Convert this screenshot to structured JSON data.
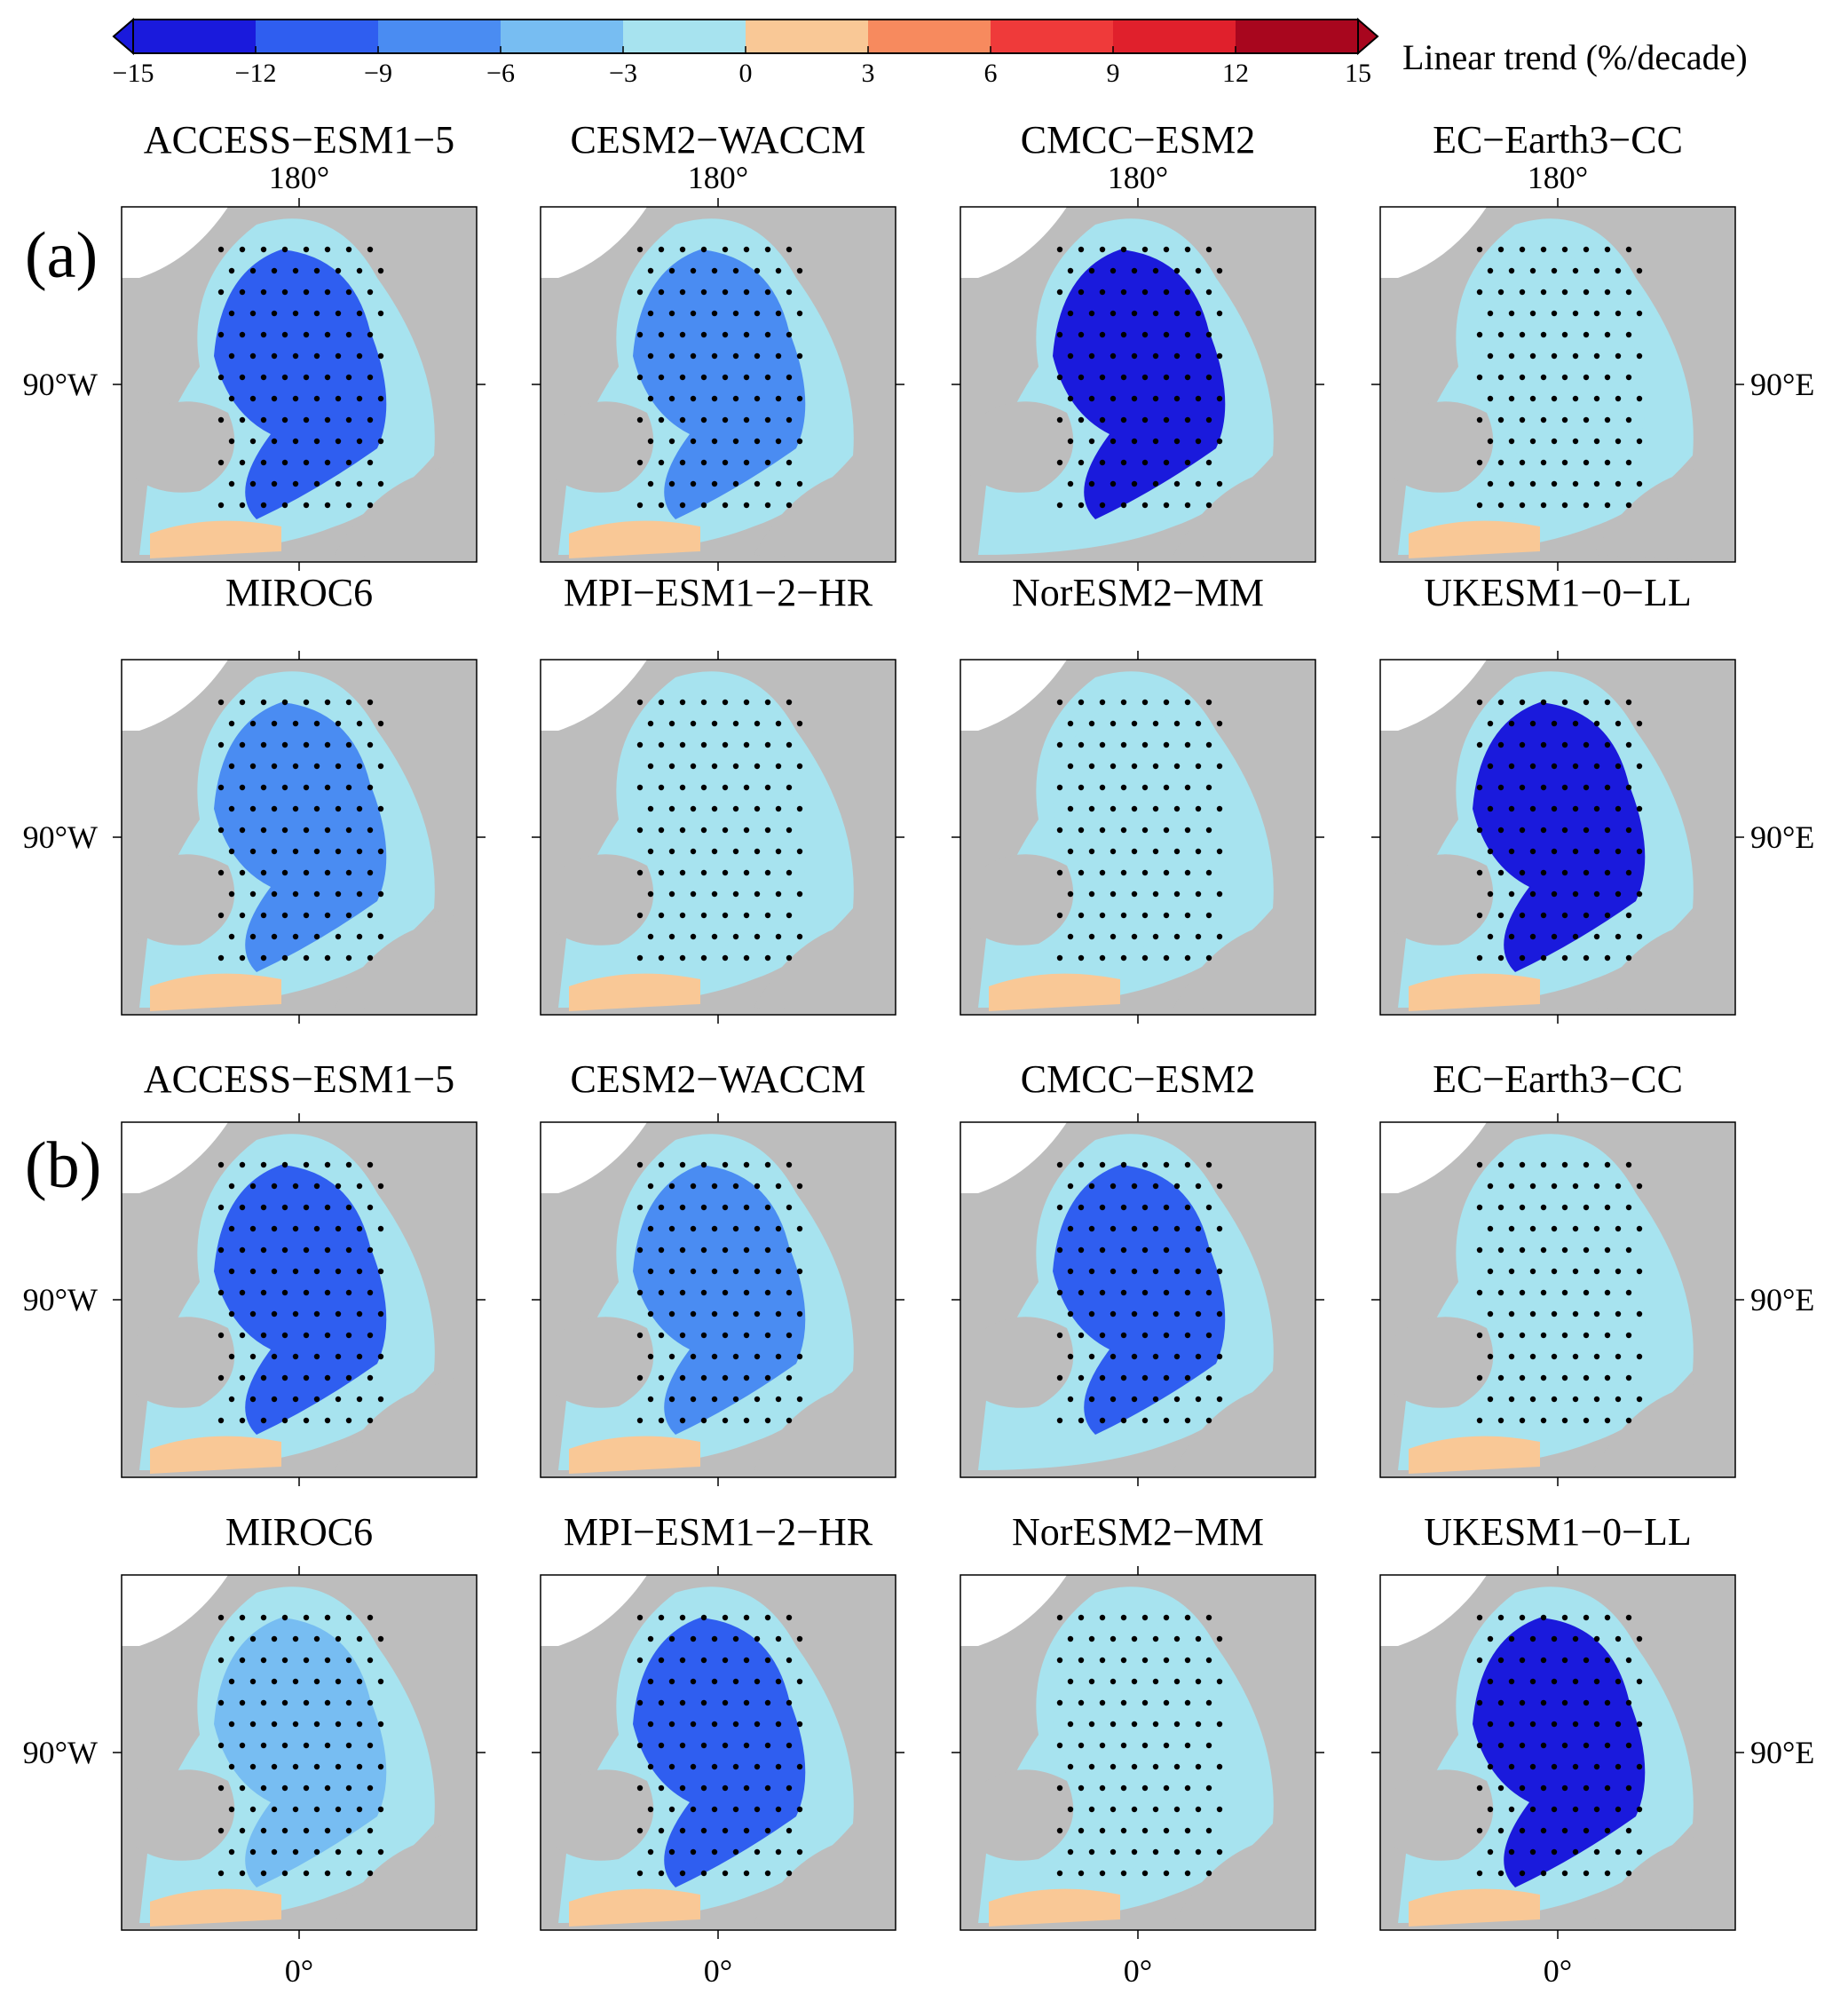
{
  "chart_data": {
    "type": "heatmap",
    "description_units": "Linear trend (%/decade)",
    "colorbar": {
      "label": "Linear trend (%/decade)",
      "ticks": [
        "−15",
        "−12",
        "−9",
        "−6",
        "−3",
        "0",
        "3",
        "6",
        "9",
        "12",
        "15"
      ],
      "bins": [
        {
          "from": -15,
          "to": -12,
          "color": "#1a1adc"
        },
        {
          "from": -12,
          "to": -9,
          "color": "#2f5ef0"
        },
        {
          "from": -9,
          "to": -6,
          "color": "#4a8cf2"
        },
        {
          "from": -6,
          "to": -3,
          "color": "#77bdf2"
        },
        {
          "from": -3,
          "to": 0,
          "color": "#a7e3ef"
        },
        {
          "from": 0,
          "to": 3,
          "color": "#f9c896"
        },
        {
          "from": 3,
          "to": 6,
          "color": "#f78a5e"
        },
        {
          "from": 6,
          "to": 9,
          "color": "#ef3a3a"
        },
        {
          "from": 9,
          "to": 12,
          "color": "#e0202c"
        },
        {
          "from": 12,
          "to": 15,
          "color": "#a8061e"
        }
      ]
    },
    "axis_labels": {
      "top": "180°",
      "left": "90°W",
      "right": "90°E",
      "bottom": "0°"
    },
    "panel_labels": [
      "(a)",
      "(b)"
    ],
    "models": [
      "ACCESS−ESM1−5",
      "CESM2−WACCM",
      "CMCC−ESM2",
      "EC−Earth3−CC",
      "MIROC6",
      "MPI−ESM1−2−HR",
      "NorESM2−MM",
      "UKESM1−0−LL"
    ],
    "panels": [
      {
        "group": "a",
        "model": "ACCESS−ESM1−5",
        "dominant_trend": "-12 to -9",
        "positive_region": true,
        "stippled": true
      },
      {
        "group": "a",
        "model": "CESM2−WACCM",
        "dominant_trend": "-9 to -6",
        "positive_region": true,
        "stippled": true
      },
      {
        "group": "a",
        "model": "CMCC−ESM2",
        "dominant_trend": "-15 to -12",
        "positive_region": false,
        "stippled": true
      },
      {
        "group": "a",
        "model": "EC−Earth3−CC",
        "dominant_trend": "-3 to 0",
        "positive_region": true,
        "stippled": true
      },
      {
        "group": "a",
        "model": "MIROC6",
        "dominant_trend": "-9 to -6",
        "positive_region": true,
        "stippled": true
      },
      {
        "group": "a",
        "model": "MPI−ESM1−2−HR",
        "dominant_trend": "-3 to 0",
        "positive_region": true,
        "stippled": true
      },
      {
        "group": "a",
        "model": "NorESM2−MM",
        "dominant_trend": "-3 to 0",
        "positive_region": true,
        "stippled": true
      },
      {
        "group": "a",
        "model": "UKESM1−0−LL",
        "dominant_trend": "-15 to -12",
        "positive_region": true,
        "stippled": true
      },
      {
        "group": "b",
        "model": "ACCESS−ESM1−5",
        "dominant_trend": "-12 to -9",
        "positive_region": true,
        "stippled": true
      },
      {
        "group": "b",
        "model": "CESM2−WACCM",
        "dominant_trend": "-9 to -6",
        "positive_region": true,
        "stippled": true
      },
      {
        "group": "b",
        "model": "CMCC−ESM2",
        "dominant_trend": "-12 to -9",
        "positive_region": false,
        "stippled": true
      },
      {
        "group": "b",
        "model": "EC−Earth3−CC",
        "dominant_trend": "-3 to 0",
        "positive_region": true,
        "stippled": true
      },
      {
        "group": "b",
        "model": "MIROC6",
        "dominant_trend": "-6 to -3",
        "positive_region": true,
        "stippled": true
      },
      {
        "group": "b",
        "model": "MPI−ESM1−2−HR",
        "dominant_trend": "-12 to -9",
        "positive_region": true,
        "stippled": true
      },
      {
        "group": "b",
        "model": "NorESM2−MM",
        "dominant_trend": "-3 to 0",
        "positive_region": true,
        "stippled": true
      },
      {
        "group": "b",
        "model": "UKESM1−0−LL",
        "dominant_trend": "-15 to -12",
        "positive_region": true,
        "stippled": true
      }
    ]
  }
}
